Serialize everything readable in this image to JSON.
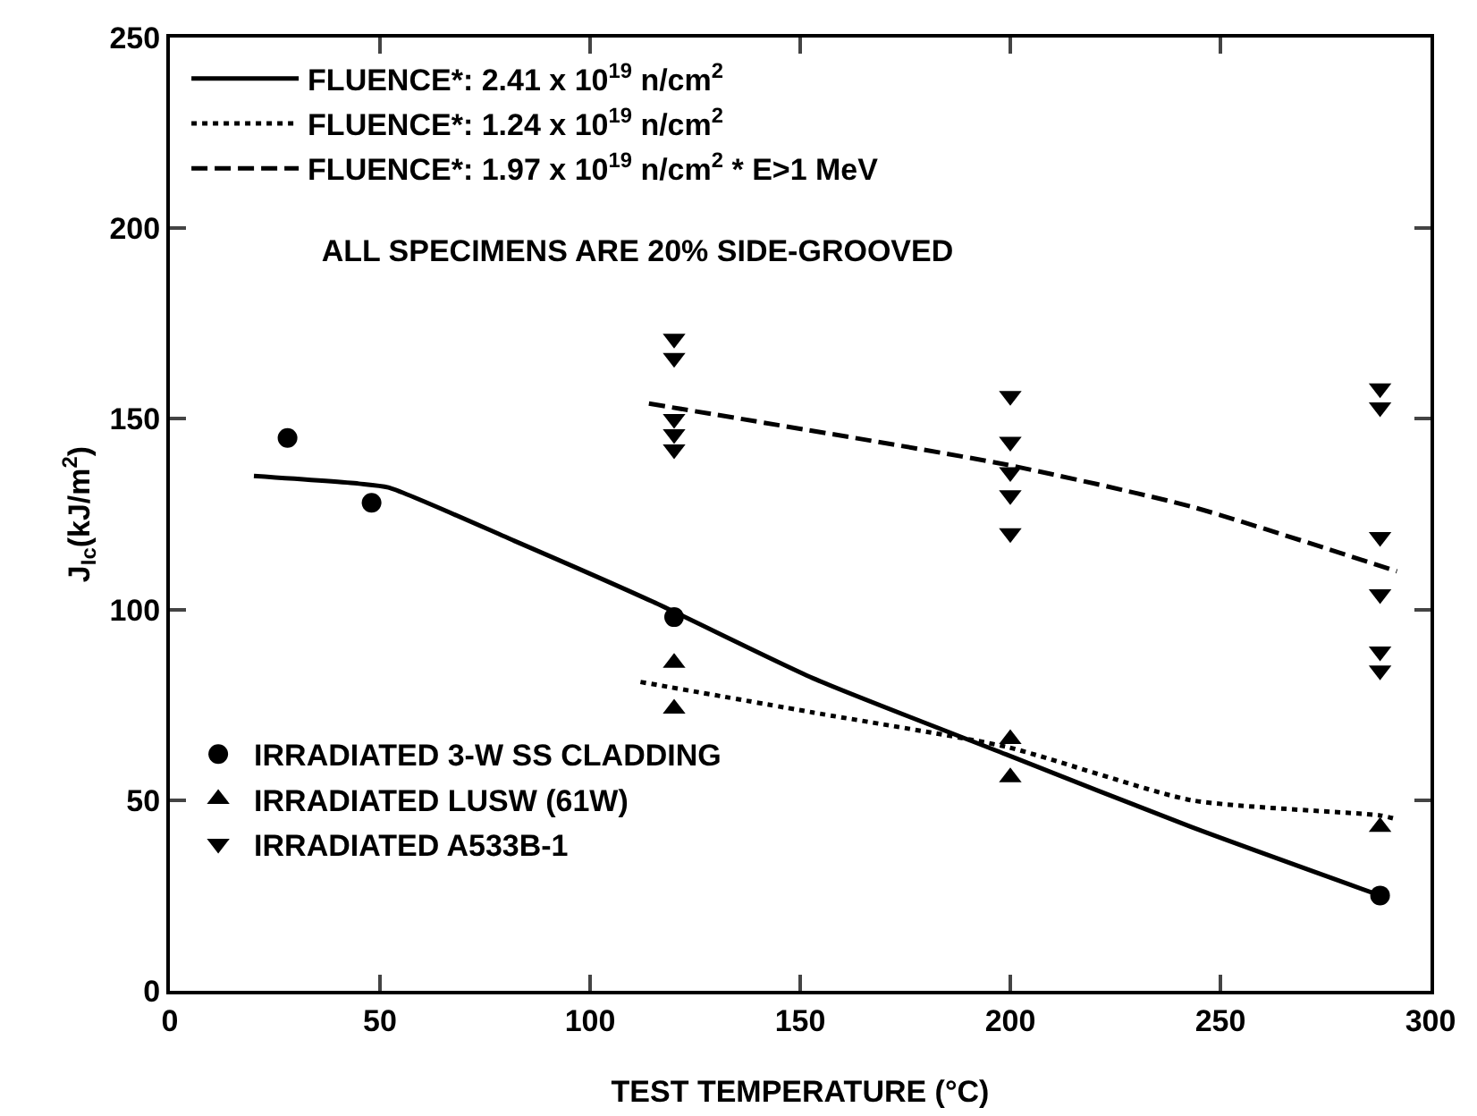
{
  "chart_data": {
    "type": "scatter",
    "xlabel": "TEST TEMPERATURE (°C)",
    "ylabel": "J$_{Ic}$(kJ/m$^{2}$)",
    "xlim": [
      0,
      300
    ],
    "xticks": [
      0,
      50,
      100,
      150,
      200,
      250,
      300
    ],
    "ylim": [
      0,
      250
    ],
    "yticks": [
      0,
      50,
      100,
      150,
      200,
      250
    ],
    "grid": false,
    "legend": "top left",
    "annotations": [
      "ALL SPECIMENS ARE 20% SIDE-GROOVED"
    ],
    "series": [
      {
        "name": "FLUENCE*: 2.41 x 10$^{19}$ n/cm$^{2}$",
        "type": "line",
        "line_style": "solid",
        "marker": "none",
        "color": "#000000",
        "x": [
          20,
          45,
          52,
          82,
          115,
          153,
          199,
          243,
          288
        ],
        "values": [
          135,
          133,
          132,
          118,
          102,
          82,
          62,
          43,
          25
        ]
      },
      {
        "name": "FLUENCE*: 1.24 x 10$^{19}$ n/cm$^{2}$",
        "type": "line",
        "line_style": "dotted",
        "marker": "none",
        "color": "#000000",
        "x": [
          112,
          153,
          199,
          243,
          288,
          292
        ],
        "values": [
          81,
          73,
          64,
          50,
          46,
          45
        ]
      },
      {
        "name": "FLUENCE*: 1.97 x 10$^{19}$ n/cm$^{2}$ * E>1 MeV",
        "type": "line",
        "line_style": "dashed",
        "marker": "none",
        "color": "#000000",
        "x": [
          114,
          199,
          243,
          292
        ],
        "values": [
          154,
          138,
          127,
          110
        ]
      },
      {
        "name": "IRRADIATED 3-W SS CLADDING",
        "marker": "circle",
        "color": "#000000",
        "x": [
          28,
          48,
          120,
          288
        ],
        "values": [
          145,
          128,
          98,
          25
        ]
      },
      {
        "name": "IRRADIATED LUSW (61W)",
        "marker": "triangle",
        "color": "#000000",
        "x": [
          120,
          120,
          200,
          200,
          288
        ],
        "values": [
          86,
          74,
          66,
          56,
          43
        ]
      },
      {
        "name": "IRRADIATED A533B-1",
        "marker": "triangle-down",
        "color": "#000000",
        "x": [
          120,
          120,
          120,
          120,
          120,
          200,
          200,
          200,
          200,
          200,
          288,
          288,
          288,
          288,
          288,
          288
        ],
        "values": [
          171,
          166,
          150,
          146,
          142,
          156,
          144,
          136,
          130,
          120,
          158,
          153,
          119,
          104,
          89,
          84
        ]
      }
    ]
  }
}
